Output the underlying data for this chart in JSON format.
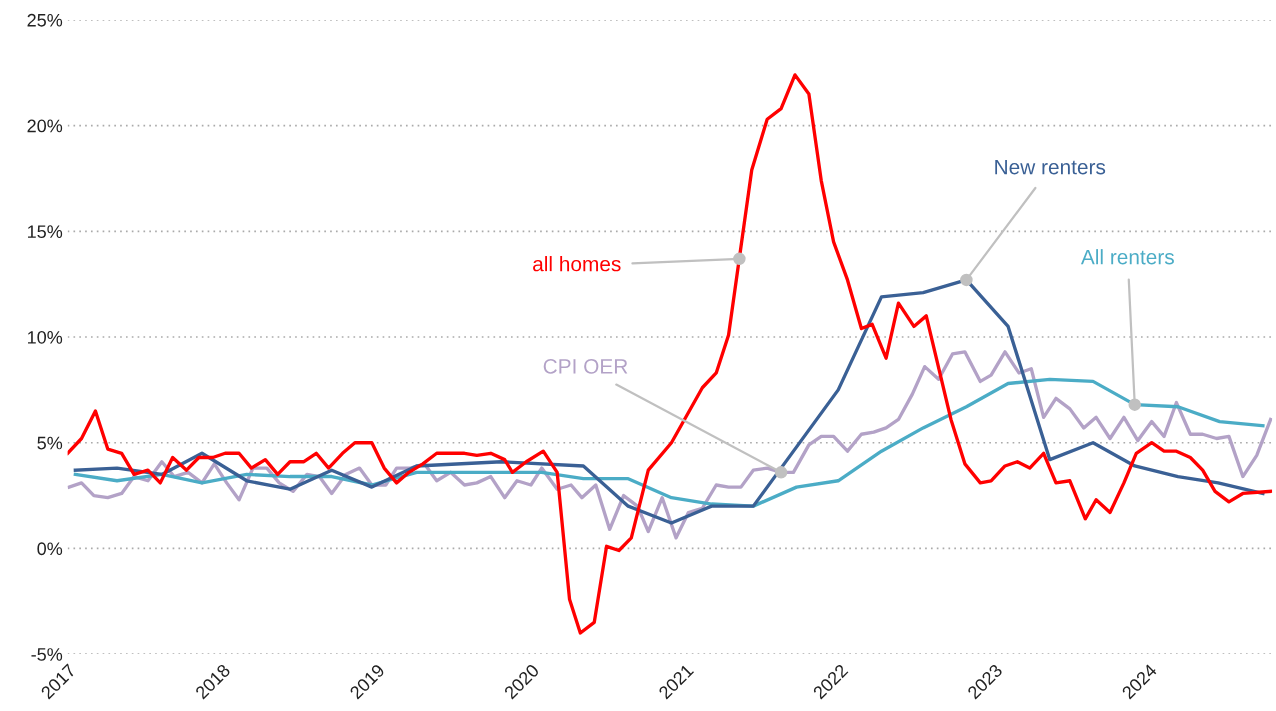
{
  "chart_data": {
    "type": "line",
    "xlim": [
      2017,
      2024.8
    ],
    "xticks": [
      2017,
      2018,
      2019,
      2020,
      2021,
      2022,
      2023,
      2024
    ],
    "ylim": [
      -5,
      25
    ],
    "yticks": [
      {
        "value": -5,
        "label": "-5%"
      },
      {
        "value": 0,
        "label": "0%"
      },
      {
        "value": 5,
        "label": "5%"
      },
      {
        "value": 10,
        "label": "10%"
      },
      {
        "value": 15,
        "label": "15%"
      },
      {
        "value": 20,
        "label": "20%"
      },
      {
        "value": 25,
        "label": "25%"
      }
    ],
    "grid": "y",
    "marker": "none",
    "line_style": "solid",
    "series": [
      {
        "color": "#b3a2c7",
        "x": [
          2017.01,
          2017.09,
          2017.17,
          2017.26,
          2017.35,
          2017.43,
          2017.52,
          2017.61,
          2017.69,
          2017.78,
          2017.87,
          2017.95,
          2018.03,
          2018.11,
          2018.2,
          2018.29,
          2018.37,
          2018.46,
          2018.55,
          2018.63,
          2018.71,
          2018.8,
          2018.89,
          2018.97,
          2019.06,
          2019.13,
          2019.22,
          2019.31,
          2019.39,
          2019.48,
          2019.57,
          2019.65,
          2019.74,
          2019.83,
          2019.91,
          2020.0,
          2020.07,
          2020.17,
          2020.26,
          2020.33,
          2020.42,
          2020.51,
          2020.6,
          2020.69,
          2020.76,
          2020.85,
          2020.94,
          2021.02,
          2021.11,
          2021.2,
          2021.28,
          2021.36,
          2021.44,
          2021.53,
          2021.62,
          2021.7,
          2021.8,
          2021.88,
          2021.96,
          2022.05,
          2022.14,
          2022.22,
          2022.3,
          2022.38,
          2022.47,
          2022.55,
          2022.64,
          2022.73,
          2022.81,
          2022.91,
          2022.98,
          2023.07,
          2023.16,
          2023.24,
          2023.32,
          2023.4,
          2023.49,
          2023.58,
          2023.66,
          2023.75,
          2023.84,
          2023.93,
          2024.02,
          2024.1,
          2024.18,
          2024.27,
          2024.35,
          2024.44,
          2024.52,
          2024.61,
          2024.7,
          2024.79
        ],
        "values": [
          2.9,
          3.1,
          2.5,
          2.4,
          2.6,
          3.4,
          3.2,
          4.1,
          3.4,
          3.6,
          3.1,
          4.0,
          3.1,
          2.3,
          3.8,
          3.8,
          3.1,
          2.7,
          3.5,
          3.4,
          2.6,
          3.5,
          3.8,
          3.0,
          3.0,
          3.8,
          3.8,
          4.0,
          3.2,
          3.6,
          3.0,
          3.1,
          3.4,
          2.4,
          3.2,
          3.0,
          3.8,
          2.8,
          3.0,
          2.4,
          3.0,
          0.9,
          2.5,
          2.0,
          0.8,
          2.4,
          0.5,
          1.7,
          1.9,
          3.0,
          2.9,
          2.9,
          3.7,
          3.8,
          3.6,
          3.6,
          4.9,
          5.3,
          5.3,
          4.6,
          5.4,
          5.5,
          5.7,
          6.1,
          7.3,
          8.6,
          8.0,
          9.2,
          9.3,
          7.9,
          8.2,
          9.3,
          8.3,
          8.5,
          6.2,
          7.1,
          6.6,
          5.7,
          6.2,
          5.2,
          6.2,
          5.1,
          6.0,
          5.3,
          6.9,
          5.4,
          5.4,
          5.2,
          5.3,
          3.4,
          4.4,
          6.1
        ]
      },
      {
        "color": "#4bacc6",
        "x": [
          2017.05,
          2017.32,
          2017.61,
          2017.87,
          2018.16,
          2018.44,
          2018.71,
          2018.97,
          2019.26,
          2019.81,
          2020.07,
          2020.34,
          2020.63,
          2020.91,
          2021.17,
          2021.44,
          2021.72,
          2021.99,
          2022.27,
          2022.54,
          2022.82,
          2023.09,
          2023.36,
          2023.64,
          2023.91,
          2024.19,
          2024.46,
          2024.74
        ],
        "values": [
          3.5,
          3.2,
          3.5,
          3.1,
          3.5,
          3.4,
          3.4,
          3.0,
          3.6,
          3.6,
          3.6,
          3.3,
          3.3,
          2.4,
          2.1,
          2.0,
          2.9,
          3.2,
          4.6,
          5.7,
          6.7,
          7.8,
          8.0,
          7.9,
          6.8,
          6.7,
          6.0,
          5.8
        ]
      },
      {
        "color": "#3a6095",
        "x": [
          2017.05,
          2017.32,
          2017.61,
          2017.87,
          2018.16,
          2018.44,
          2018.71,
          2018.97,
          2019.26,
          2019.81,
          2020.34,
          2020.63,
          2020.91,
          2021.17,
          2021.44,
          2021.99,
          2022.27,
          2022.54,
          2022.82,
          2023.09,
          2023.36,
          2023.64,
          2023.91,
          2024.19,
          2024.45,
          2024.74
        ],
        "values": [
          3.7,
          3.8,
          3.5,
          4.5,
          3.2,
          2.8,
          3.7,
          2.9,
          3.9,
          4.1,
          3.9,
          2.0,
          1.2,
          2.0,
          2.0,
          7.5,
          11.9,
          12.1,
          12.7,
          10.5,
          4.2,
          5.0,
          3.9,
          3.4,
          3.1,
          2.6
        ]
      },
      {
        "color": "#ff0000",
        "x": [
          2017.0,
          2017.09,
          2017.18,
          2017.26,
          2017.35,
          2017.43,
          2017.52,
          2017.6,
          2017.68,
          2017.77,
          2017.85,
          2017.94,
          2018.02,
          2018.11,
          2018.19,
          2018.28,
          2018.36,
          2018.44,
          2018.53,
          2018.61,
          2018.69,
          2018.78,
          2018.86,
          2018.97,
          2019.05,
          2019.13,
          2019.21,
          2019.3,
          2019.39,
          2019.47,
          2019.57,
          2019.65,
          2019.74,
          2019.83,
          2019.88,
          2019.97,
          2020.08,
          2020.17,
          2020.25,
          2020.32,
          2020.41,
          2020.49,
          2020.57,
          2020.65,
          2020.76,
          2020.91,
          2021.11,
          2021.2,
          2021.28,
          2021.43,
          2021.53,
          2021.62,
          2021.71,
          2021.8,
          2021.88,
          2021.96,
          2022.05,
          2022.14,
          2022.21,
          2022.3,
          2022.38,
          2022.48,
          2022.56,
          2022.72,
          2022.81,
          2022.91,
          2022.98,
          2023.07,
          2023.15,
          2023.23,
          2023.32,
          2023.4,
          2023.49,
          2023.59,
          2023.66,
          2023.75,
          2023.84,
          2023.92,
          2024.02,
          2024.1,
          2024.18,
          2024.27,
          2024.35,
          2024.43,
          2024.52,
          2024.61,
          2024.79
        ],
        "values": [
          4.5,
          5.2,
          6.5,
          4.7,
          4.5,
          3.5,
          3.7,
          3.1,
          4.3,
          3.7,
          4.3,
          4.3,
          4.5,
          4.5,
          3.8,
          4.2,
          3.5,
          4.1,
          4.1,
          4.5,
          3.8,
          4.5,
          5.0,
          5.0,
          3.8,
          3.1,
          3.6,
          4.0,
          4.5,
          4.5,
          4.5,
          4.4,
          4.5,
          4.2,
          3.6,
          4.1,
          4.6,
          3.6,
          -2.4,
          -4.0,
          -3.5,
          0.1,
          -0.1,
          0.5,
          3.7,
          5.0,
          7.6,
          8.3,
          10.1,
          17.9,
          20.3,
          20.8,
          22.4,
          21.5,
          17.4,
          14.5,
          12.7,
          10.4,
          10.6,
          9.0,
          11.6,
          10.5,
          11.0,
          6.1,
          4.0,
          3.1,
          3.2,
          3.9,
          4.1,
          3.8,
          4.5,
          3.1,
          3.2,
          1.4,
          2.3,
          1.7,
          3.1,
          4.5,
          5.0,
          4.6,
          4.6,
          4.3,
          3.7,
          2.7,
          2.2,
          2.6,
          2.7
        ]
      }
    ],
    "annotations": [
      {
        "text": "CPI OER",
        "x": 2021.62,
        "y": 3.6
      },
      {
        "text": "All renters",
        "x": 2023.91,
        "y": 6.8
      },
      {
        "text": "New renters",
        "x": 2022.82,
        "y": 12.7
      },
      {
        "text": "all homes",
        "x": 2021.35,
        "y": 13.7
      }
    ]
  }
}
